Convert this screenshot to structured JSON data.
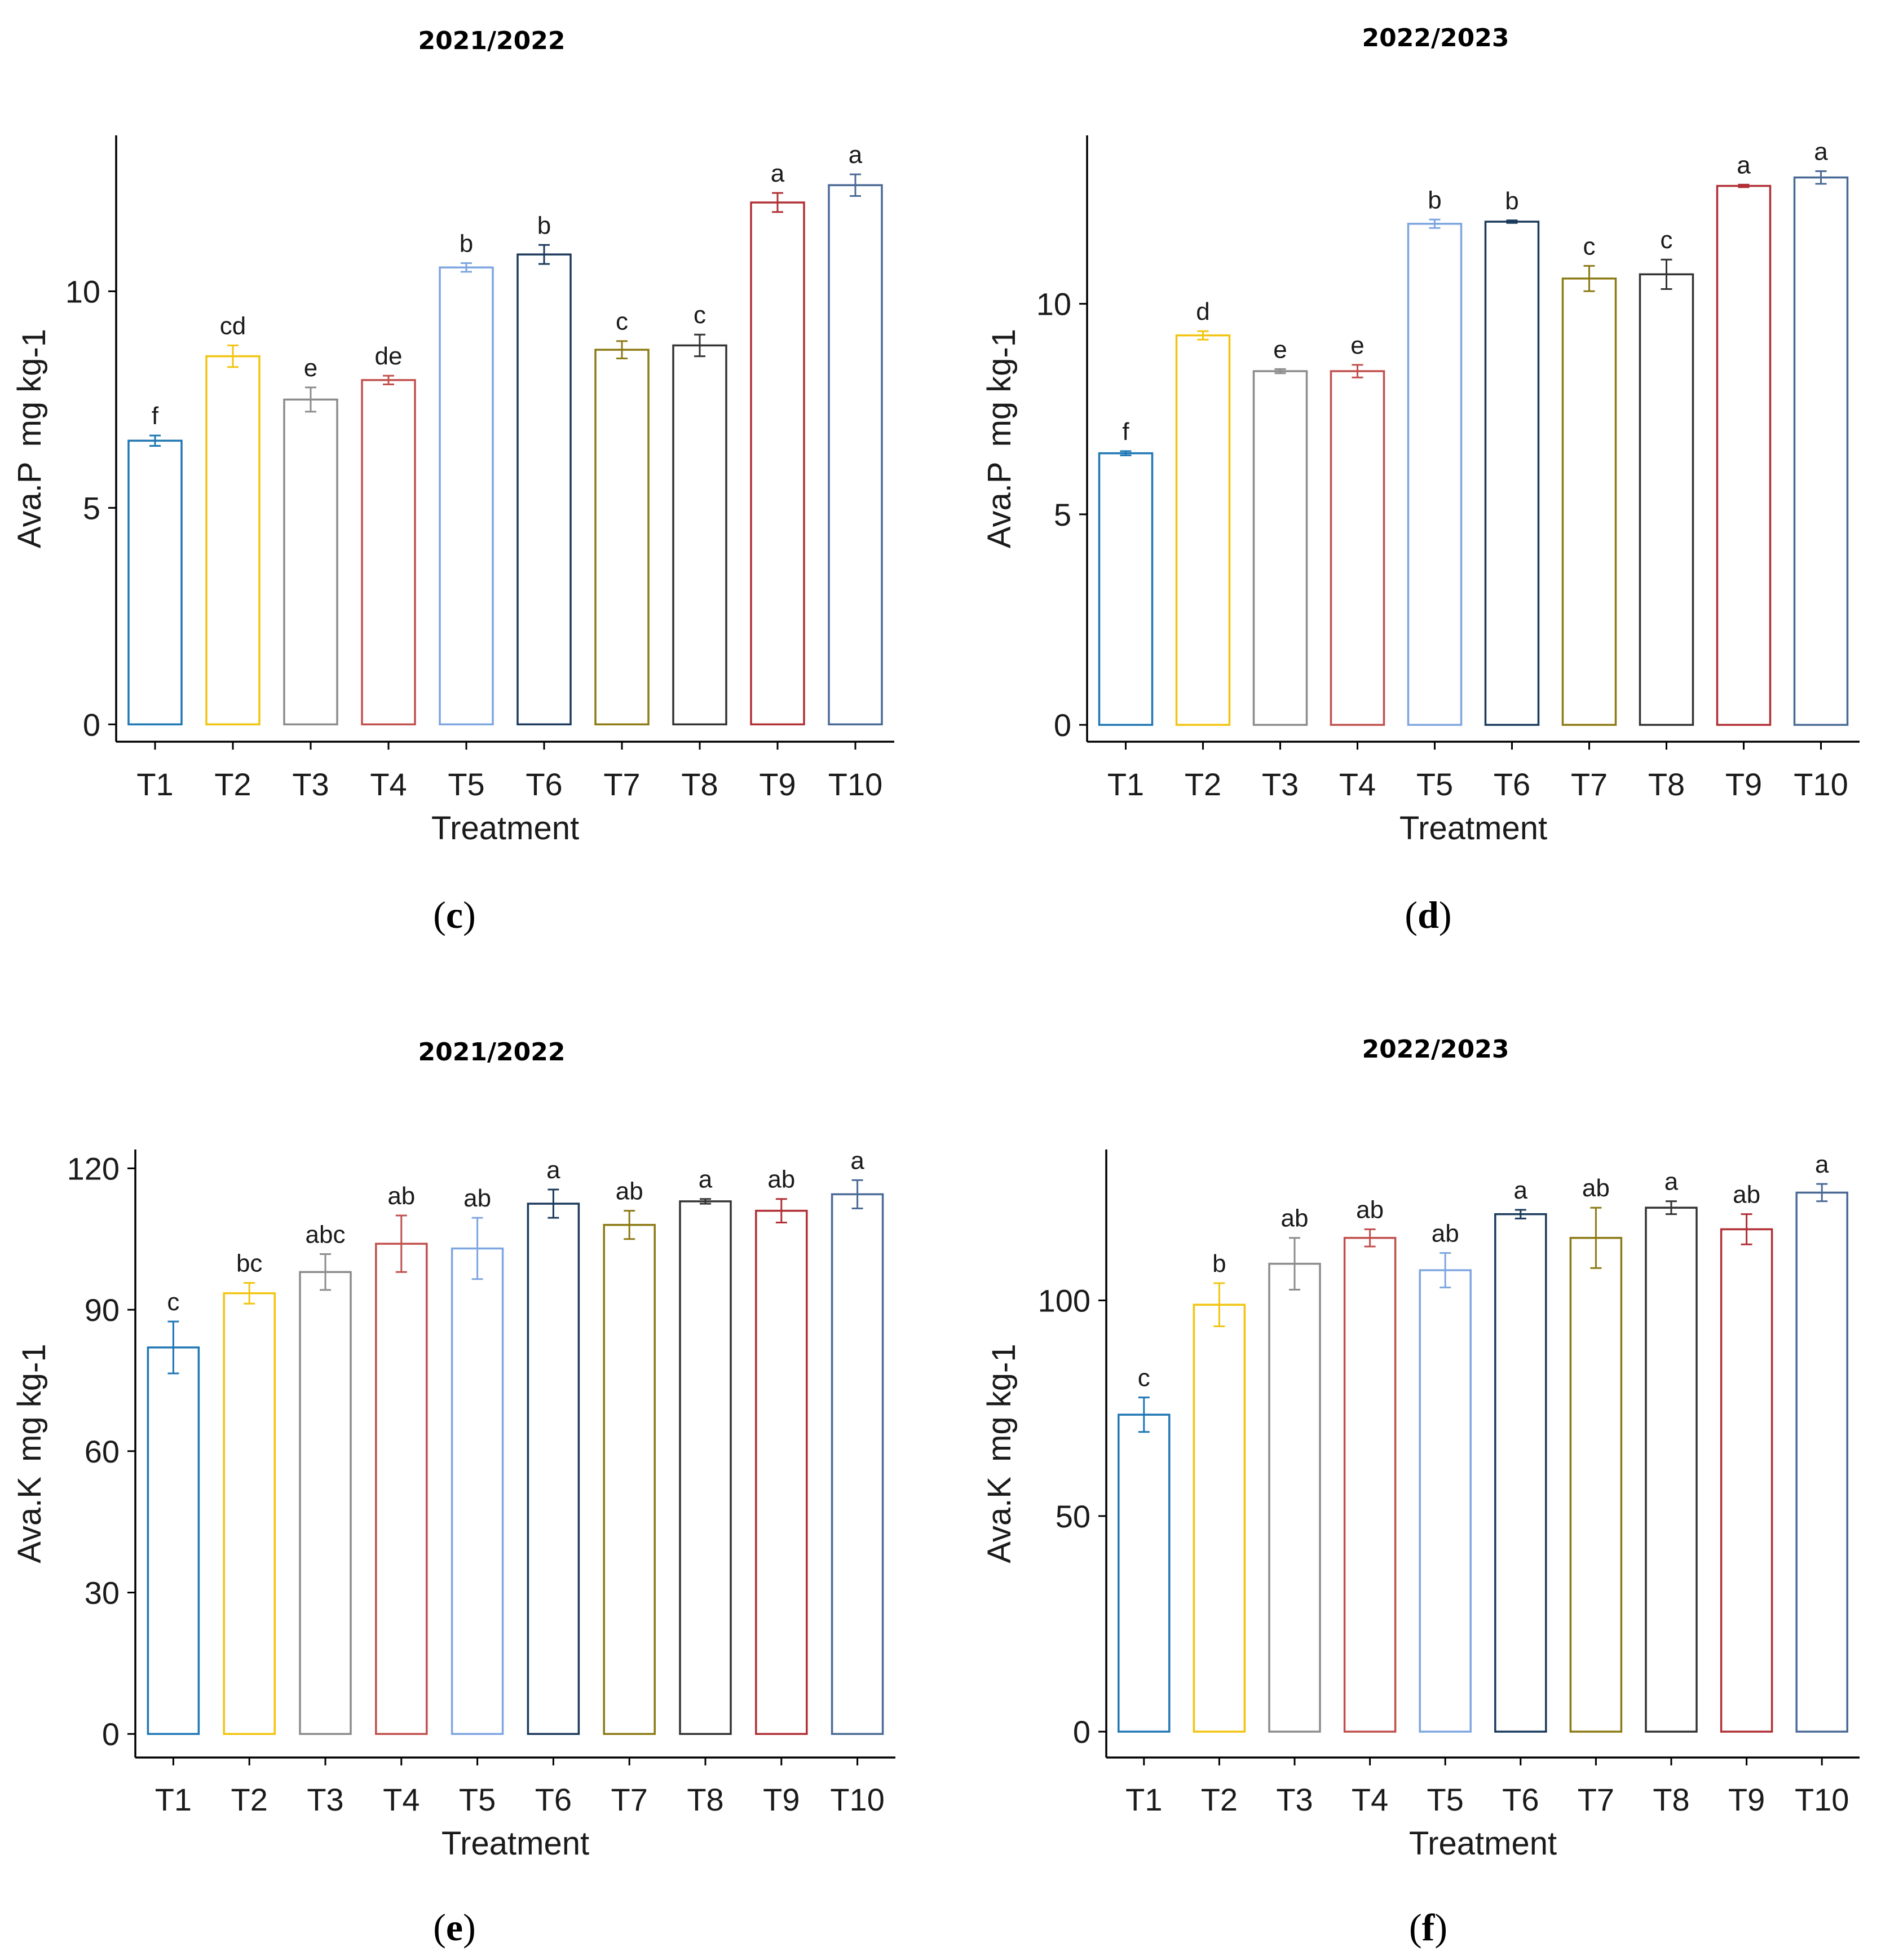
{
  "colors": [
    "#1f77b4",
    "#f2c40f",
    "#8c8c8c",
    "#c0504d",
    "#7ea6e0",
    "#1b3a5c",
    "#8c7a14",
    "#333333",
    "#b03036",
    "#4a6a96"
  ],
  "chart_data": [
    {
      "type": "bar",
      "panel": "c",
      "title": "2021/2022",
      "xlabel": "Treatment",
      "ylabel": "Ava.P  mg kg-1",
      "ylabel_parts": [
        "Ava.P",
        "mg kg",
        "-1"
      ],
      "categories": [
        "T1",
        "T2",
        "T3",
        "T4",
        "T5",
        "T6",
        "T7",
        "T8",
        "T9",
        "T10"
      ],
      "values": [
        6.55,
        8.5,
        7.5,
        7.95,
        10.55,
        10.85,
        8.65,
        8.75,
        12.05,
        12.45
      ],
      "errors": [
        0.12,
        0.25,
        0.28,
        0.1,
        0.1,
        0.22,
        0.2,
        0.25,
        0.22,
        0.25
      ],
      "letters": [
        "f",
        "cd",
        "e",
        "de",
        "b",
        "b",
        "c",
        "c",
        "a",
        "a"
      ],
      "yticks": [
        0,
        5,
        10
      ],
      "ytick_labels": [
        "0",
        "5",
        "10"
      ],
      "ylim": [
        -0.4,
        13.6
      ],
      "grid": false
    },
    {
      "type": "bar",
      "panel": "d",
      "title": "2022/2023",
      "xlabel": "Treatment",
      "ylabel": "Ava.P  mg kg-1",
      "ylabel_parts": [
        "Ava.P",
        "mg kg",
        "-1"
      ],
      "categories": [
        "T1",
        "T2",
        "T3",
        "T4",
        "T5",
        "T6",
        "T7",
        "T8",
        "T9",
        "T10"
      ],
      "values": [
        6.45,
        9.25,
        8.4,
        8.4,
        11.9,
        11.95,
        10.6,
        10.7,
        12.8,
        13.0
      ],
      "errors": [
        0.05,
        0.1,
        0.05,
        0.15,
        0.1,
        0.03,
        0.3,
        0.35,
        0.03,
        0.15
      ],
      "letters": [
        "f",
        "d",
        "e",
        "e",
        "b",
        "b",
        "c",
        "c",
        "a",
        "a"
      ],
      "yticks": [
        0,
        5,
        10
      ],
      "ytick_labels": [
        "0",
        "5",
        "10"
      ],
      "ylim": [
        -0.4,
        14.0
      ],
      "grid": false
    },
    {
      "type": "bar",
      "panel": "e",
      "title": "2021/2022",
      "xlabel": "Treatment",
      "ylabel": "Ava.K  mg kg-1",
      "ylabel_parts": [
        "Ava.K",
        "mg kg",
        "-1"
      ],
      "categories": [
        "T1",
        "T2",
        "T3",
        "T4",
        "T5",
        "T6",
        "T7",
        "T8",
        "T9",
        "T10"
      ],
      "values": [
        82,
        93.5,
        98,
        104,
        103,
        112.5,
        108,
        113,
        111,
        114.5
      ],
      "errors": [
        5.5,
        2.2,
        3.8,
        6,
        6.5,
        3,
        3,
        0.5,
        2.5,
        3
      ],
      "letters": [
        "c",
        "bc",
        "abc",
        "ab",
        "ab",
        "a",
        "ab",
        "a",
        "ab",
        "a"
      ],
      "yticks": [
        0,
        30,
        60,
        90,
        120
      ],
      "ytick_labels": [
        "0",
        "30",
        "60",
        "90",
        "120"
      ],
      "ylim": [
        -5,
        124
      ],
      "grid": false
    },
    {
      "type": "bar",
      "panel": "f",
      "title": "2022/2023",
      "xlabel": "Treatment",
      "ylabel": "Ava.K  mg kg-1",
      "ylabel_parts": [
        "Ava.K",
        "mg kg",
        "-1"
      ],
      "categories": [
        "T1",
        "T2",
        "T3",
        "T4",
        "T5",
        "T6",
        "T7",
        "T8",
        "T9",
        "T10"
      ],
      "values": [
        73.5,
        99,
        108.5,
        114.5,
        107,
        120,
        114.5,
        121.5,
        116.5,
        125
      ],
      "errors": [
        4,
        5,
        6,
        2,
        4,
        1,
        7,
        1.5,
        3.5,
        2
      ],
      "letters": [
        "c",
        "b",
        "ab",
        "ab",
        "ab",
        "a",
        "ab",
        "a",
        "ab",
        "a"
      ],
      "yticks": [
        0,
        50,
        100
      ],
      "ytick_labels": [
        "0",
        "50",
        "100"
      ],
      "ylim": [
        -6,
        135
      ],
      "grid": false
    }
  ]
}
